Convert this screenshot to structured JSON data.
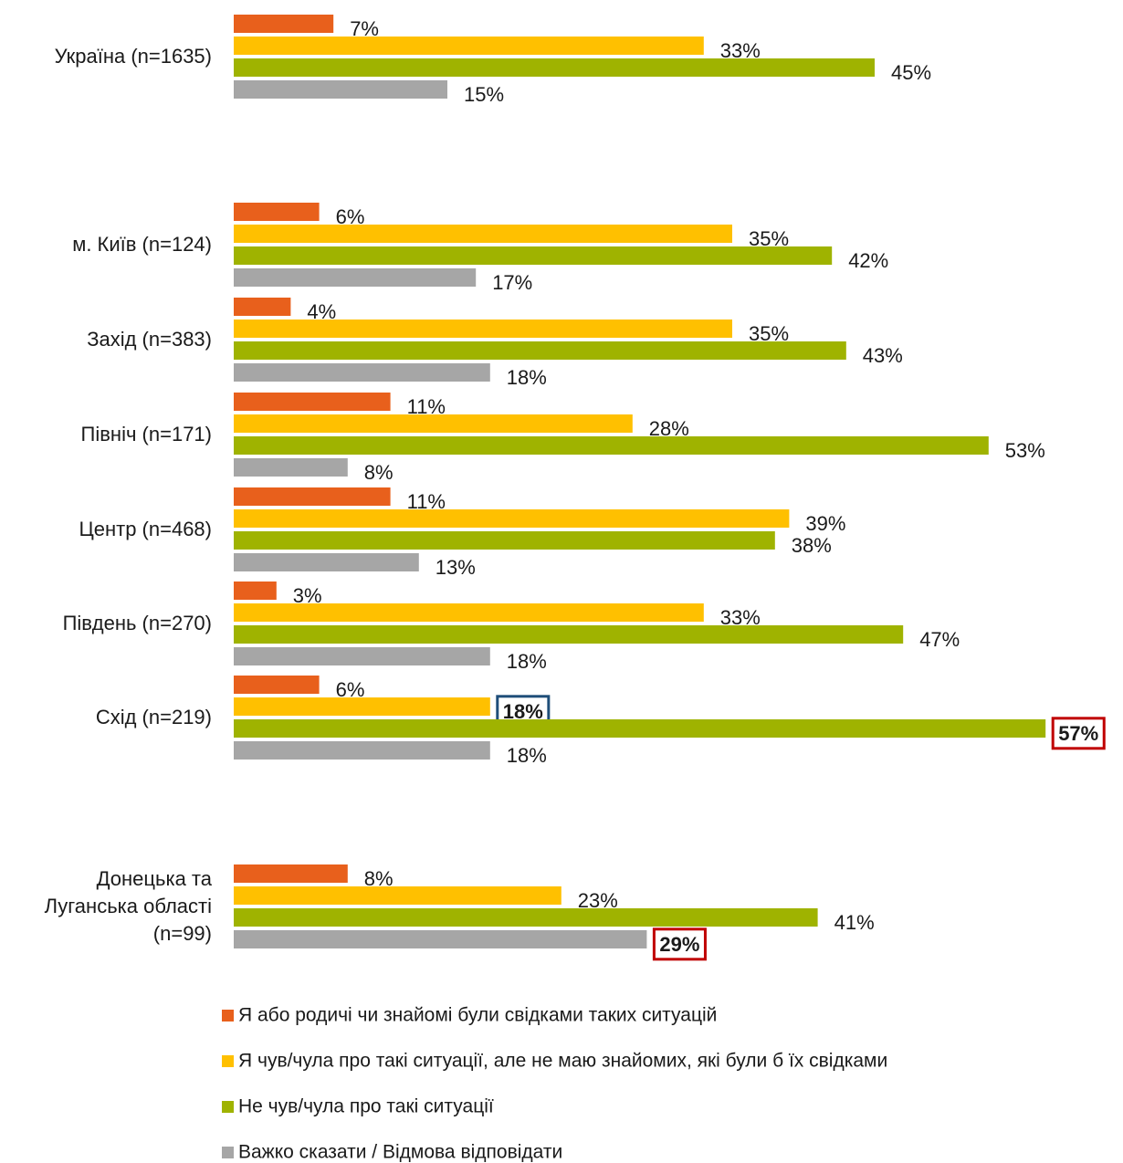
{
  "chart_data": {
    "type": "bar",
    "orientation": "horizontal",
    "categories": [
      "Україна (n=1635)",
      "м. Київ  (n=124)",
      "Захід (n=383)",
      "Північ (n=171)",
      "Центр (n=468)",
      "Південь (n=270)",
      "Схід (n=219)",
      "Донецька та\nЛуганська області\n(n=99)"
    ],
    "series": [
      {
        "name": "Я або родичі чи знайомі були свідками таких ситуацій",
        "color": "#e8601c",
        "values": [
          7,
          6,
          4,
          11,
          11,
          3,
          6,
          8
        ],
        "value_labels": [
          "7%",
          "6%",
          "4%",
          "11%",
          "11%",
          "3%",
          "6%",
          "8%"
        ]
      },
      {
        "name": "Я чув/чула про такі ситуації, але не маю знайомих, які були б їх свідками",
        "color": "#ffc000",
        "values": [
          33,
          35,
          35,
          28,
          39,
          33,
          18,
          23
        ],
        "value_labels": [
          "33%",
          "35%",
          "35%",
          "28%",
          "39%",
          "33%",
          "18%",
          "23%"
        ]
      },
      {
        "name": "Не чув/чула про такі ситуації",
        "color": "#9fb300",
        "values": [
          45,
          42,
          43,
          53,
          38,
          47,
          57,
          41
        ],
        "value_labels": [
          "45%",
          "42%",
          "43%",
          "53%",
          "38%",
          "47%",
          "57%",
          "41%"
        ]
      },
      {
        "name": "Важко сказати / Відмова відповідати",
        "color": "#a6a6a6",
        "values": [
          15,
          17,
          18,
          8,
          13,
          18,
          18,
          29
        ],
        "value_labels": [
          "15%",
          "17%",
          "18%",
          "8%",
          "13%",
          "18%",
          "18%",
          "29%"
        ]
      }
    ],
    "highlights": [
      {
        "series": 1,
        "index": 6,
        "color": "#1f4e79"
      },
      {
        "series": 2,
        "index": 6,
        "color": "#c00000"
      },
      {
        "series": 3,
        "index": 7,
        "color": "#c00000"
      }
    ],
    "legend": "bottom"
  }
}
